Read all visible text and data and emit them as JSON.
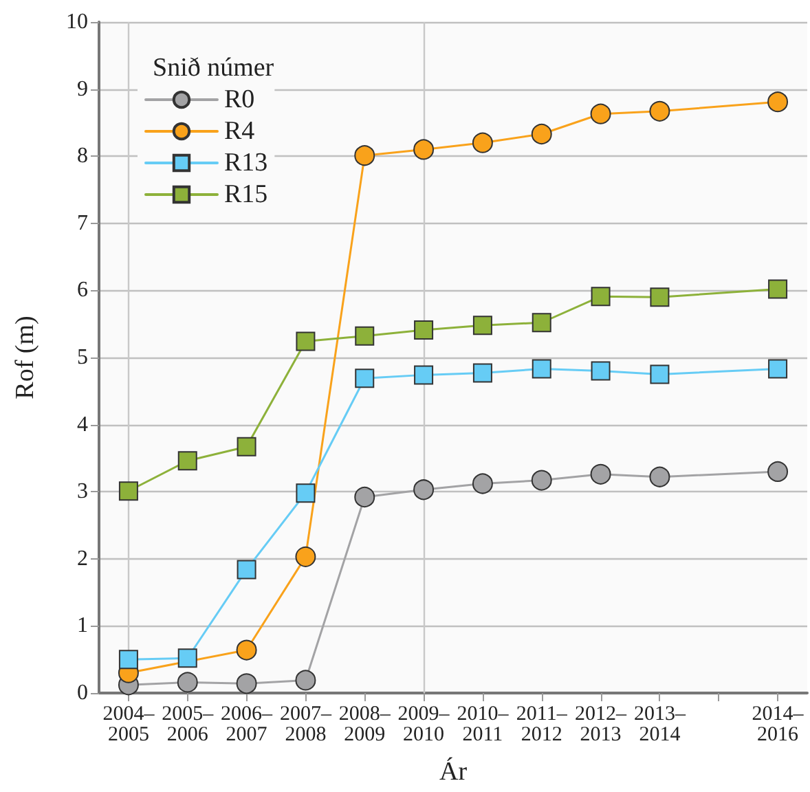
{
  "chart_data": {
    "type": "line",
    "xlabel": "Ár",
    "ylabel": "Rof (m)",
    "legend_title": "Snið númer",
    "categories": [
      "2004–2005",
      "2005–2006",
      "2006–2007",
      "2007–2008",
      "2008–2009",
      "2009–2010",
      "2010–2011",
      "2011–2012",
      "2012–2013",
      "2013–2014",
      null,
      "2014–2016"
    ],
    "ylim": [
      0,
      10
    ],
    "yticks": [
      0,
      1,
      2,
      3,
      4,
      5,
      6,
      7,
      8,
      9,
      10
    ],
    "grid": "y",
    "legend": "top left",
    "line_style": "solid",
    "ref_lines": [
      {
        "axis": "x",
        "value": "2004–2005",
        "color": "#c8c8c8"
      },
      {
        "axis": "x",
        "value": "2009–2010",
        "color": "#c8c8c8"
      }
    ],
    "series": [
      {
        "name": "R0",
        "color": "#a3a3a5",
        "marker": "circle",
        "values": [
          0.12,
          0.16,
          0.14,
          0.19,
          2.92,
          3.03,
          3.12,
          3.17,
          3.26,
          3.22,
          null,
          3.3
        ]
      },
      {
        "name": "R4",
        "color": "#f9a21b",
        "marker": "circle",
        "values": [
          0.3,
          null,
          0.64,
          2.03,
          8.01,
          8.1,
          8.2,
          8.33,
          8.63,
          8.67,
          null,
          8.81
        ]
      },
      {
        "name": "R13",
        "color": "#66ccf5",
        "marker": "square",
        "values": [
          0.5,
          0.52,
          1.84,
          2.98,
          4.69,
          4.74,
          4.77,
          4.83,
          4.8,
          4.75,
          null,
          4.83
        ]
      },
      {
        "name": "R15",
        "color": "#8db13a",
        "marker": "square",
        "values": [
          3.01,
          3.46,
          3.67,
          5.24,
          5.32,
          5.41,
          5.48,
          5.52,
          5.91,
          5.9,
          null,
          6.02
        ]
      }
    ]
  }
}
